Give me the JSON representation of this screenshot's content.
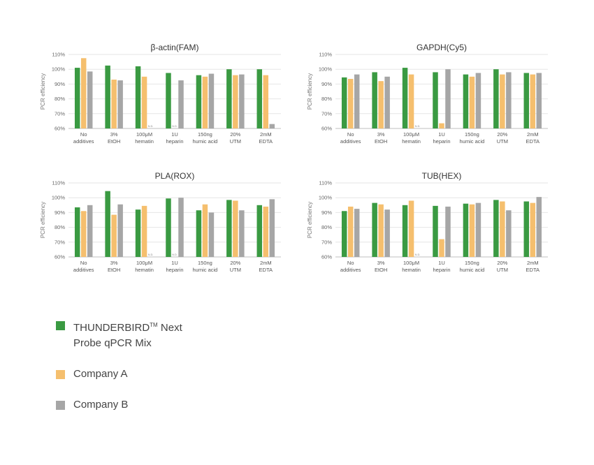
{
  "colors": {
    "thunderbird": "#3a9a42",
    "company_a": "#f5bf6e",
    "company_b": "#a6a6a6"
  },
  "legend": {
    "thunderbird_line1_a": "THUNDERBIRD",
    "thunderbird_tm": "TM",
    "thunderbird_line1_b": " Next",
    "thunderbird_line2": "Probe qPCR Mix",
    "company_a": "Company A",
    "company_b": "Company B"
  },
  "chart_data": [
    {
      "type": "bar",
      "title": "β-actin(FAM)",
      "ylabel": "PCR efficiency",
      "ylim": [
        60,
        110
      ],
      "yticks": [
        "60%",
        "70%",
        "80%",
        "90%",
        "100%",
        "110%"
      ],
      "categories": [
        [
          "No",
          "additives"
        ],
        [
          "3%",
          "EtOH"
        ],
        [
          "100μM",
          "hematin"
        ],
        [
          "1U",
          "heparin"
        ],
        [
          "150ng",
          "humic acid"
        ],
        [
          "20%",
          "UTM"
        ],
        [
          "2mM",
          "EDTA"
        ]
      ],
      "series": [
        {
          "name": "THUNDERBIRD™ Next Probe qPCR Mix",
          "values": [
            101,
            102.5,
            102,
            97.5,
            96,
            100,
            100
          ]
        },
        {
          "name": "Company A",
          "values": [
            107.5,
            93,
            95,
            null,
            95,
            96,
            96
          ]
        },
        {
          "name": "Company B",
          "values": [
            98.5,
            92.5,
            null,
            92.5,
            97,
            96.5,
            63
          ]
        }
      ],
      "annotations": [
        {
          "category": 2,
          "series": 2,
          "text": "N.D."
        },
        {
          "category": 3,
          "series": 1,
          "text": "N.D."
        }
      ]
    },
    {
      "type": "bar",
      "title": "GAPDH(Cy5)",
      "ylabel": "PCR efficiency",
      "ylim": [
        60,
        110
      ],
      "yticks": [
        "60%",
        "70%",
        "80%",
        "90%",
        "100%",
        "110%"
      ],
      "categories": [
        [
          "No",
          "additives"
        ],
        [
          "3%",
          "EtOH"
        ],
        [
          "100μM",
          "hematin"
        ],
        [
          "1U",
          "heparin"
        ],
        [
          "150ng",
          "humic acid"
        ],
        [
          "20%",
          "UTM"
        ],
        [
          "2mM",
          "EDTA"
        ]
      ],
      "series": [
        {
          "name": "THUNDERBIRD™ Next Probe qPCR Mix",
          "values": [
            94.5,
            98,
            101,
            98,
            96.5,
            100,
            97.5
          ]
        },
        {
          "name": "Company A",
          "values": [
            93.5,
            92,
            96.5,
            63.5,
            95,
            96.5,
            96.5
          ]
        },
        {
          "name": "Company B",
          "values": [
            96.5,
            95,
            null,
            100,
            97.5,
            98,
            97.5
          ]
        }
      ],
      "annotations": [
        {
          "category": 2,
          "series": 2,
          "text": "N.D."
        }
      ]
    },
    {
      "type": "bar",
      "title": "PLA(ROX)",
      "ylabel": "PCR efficiency",
      "ylim": [
        60,
        110
      ],
      "yticks": [
        "60%",
        "70%",
        "80%",
        "90%",
        "100%",
        "110%"
      ],
      "categories": [
        [
          "No",
          "additives"
        ],
        [
          "3%",
          "EtOH"
        ],
        [
          "100μM",
          "hematin"
        ],
        [
          "1U",
          "heparin"
        ],
        [
          "150ng",
          "humic acid"
        ],
        [
          "20%",
          "UTM"
        ],
        [
          "2mM",
          "EDTA"
        ]
      ],
      "series": [
        {
          "name": "THUNDERBIRD™ Next Probe qPCR Mix",
          "values": [
            93.5,
            104.5,
            92,
            99.5,
            91.5,
            98.5,
            95
          ]
        },
        {
          "name": "Company A",
          "values": [
            91,
            88.5,
            94.5,
            null,
            95.5,
            98,
            94
          ]
        },
        {
          "name": "Company B",
          "values": [
            95,
            95.5,
            null,
            100,
            90,
            91.5,
            99
          ]
        }
      ],
      "annotations": [
        {
          "category": 2,
          "series": 2,
          "text": "N.D."
        },
        {
          "category": 3,
          "series": 1,
          "text": "N.D."
        }
      ]
    },
    {
      "type": "bar",
      "title": "TUB(HEX)",
      "ylabel": "PCR efficiency",
      "ylim": [
        60,
        110
      ],
      "yticks": [
        "60%",
        "70%",
        "80%",
        "90%",
        "100%",
        "110%"
      ],
      "categories": [
        [
          "No",
          "additives"
        ],
        [
          "3%",
          "EtOH"
        ],
        [
          "100μM",
          "hematin"
        ],
        [
          "1U",
          "heparin"
        ],
        [
          "150ng",
          "humic acid"
        ],
        [
          "20%",
          "UTM"
        ],
        [
          "2mM",
          "EDTA"
        ]
      ],
      "series": [
        {
          "name": "THUNDERBIRD™ Next Probe qPCR Mix",
          "values": [
            91,
            96.5,
            95,
            94.5,
            96,
            98.5,
            97.5
          ]
        },
        {
          "name": "Company A",
          "values": [
            94,
            95.5,
            98,
            72,
            95.5,
            97.5,
            96.5
          ]
        },
        {
          "name": "Company B",
          "values": [
            92.5,
            92,
            null,
            94,
            96.5,
            91.5,
            100.5
          ]
        }
      ],
      "annotations": [
        {
          "category": 2,
          "series": 2,
          "text": "N.D."
        }
      ]
    }
  ]
}
